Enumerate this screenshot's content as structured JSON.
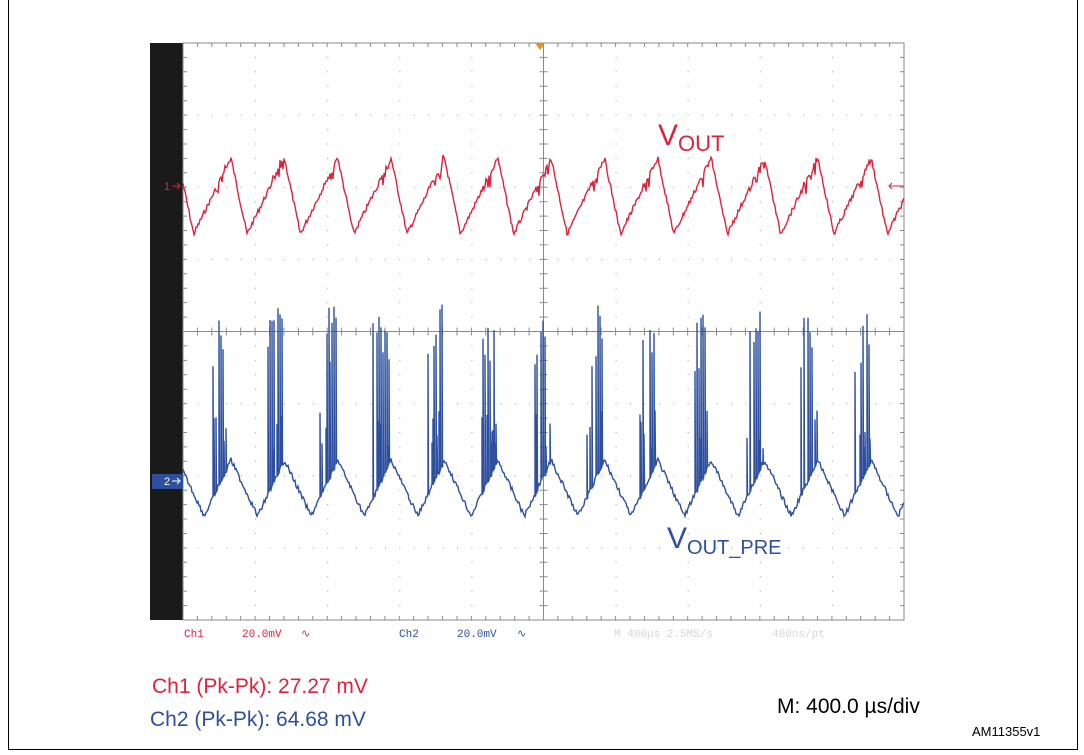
{
  "chart_data": {
    "type": "line",
    "title": "",
    "xlabel": "",
    "ylabel": "",
    "grid": true,
    "xlim": [
      0,
      4000
    ],
    "x_unit": "µs",
    "divisions": {
      "horizontal": 10,
      "vertical": 8
    },
    "series": [
      {
        "name": "VOUT",
        "label_main": "V",
        "label_sub": "OUT",
        "channel": "Ch1",
        "color": "#e0213c",
        "scale": "20.0mV",
        "marker": "1",
        "pk_pk_mV": 27.27,
        "pulses": 13,
        "period_us": 296
      },
      {
        "name": "VOUT_PRE",
        "label_main": "V",
        "label_sub": "OUT_PRE",
        "channel": "Ch2",
        "color": "#2e4fa0",
        "scale": "20.0mV",
        "marker": "2",
        "pk_pk_mV": 64.68,
        "pulses": 13,
        "period_us": 296
      }
    ],
    "scope_status": {
      "ch1": "Ch1",
      "ch1_scale": "20.0mV",
      "coupling_symbol": "∿",
      "ch2": "Ch2",
      "ch2_scale": "20.0mV",
      "timebase": "M 400µs 2.5MS/s",
      "resolution": "400ns/pt"
    }
  },
  "measurements": {
    "ch1": "Ch1 (Pk-Pk): 27.27 mV",
    "ch2": "Ch2 (Pk-Pk): 64.68 mV"
  },
  "timebase_label": "M: 400.0 µs/div",
  "reference": "AM11355v1",
  "colors": {
    "ch1": "#e0213c",
    "ch2": "#2e4fa0",
    "grid": "#8a8a8a",
    "left_bar": "#1a1a1a",
    "trigger": "#f08a1c"
  }
}
